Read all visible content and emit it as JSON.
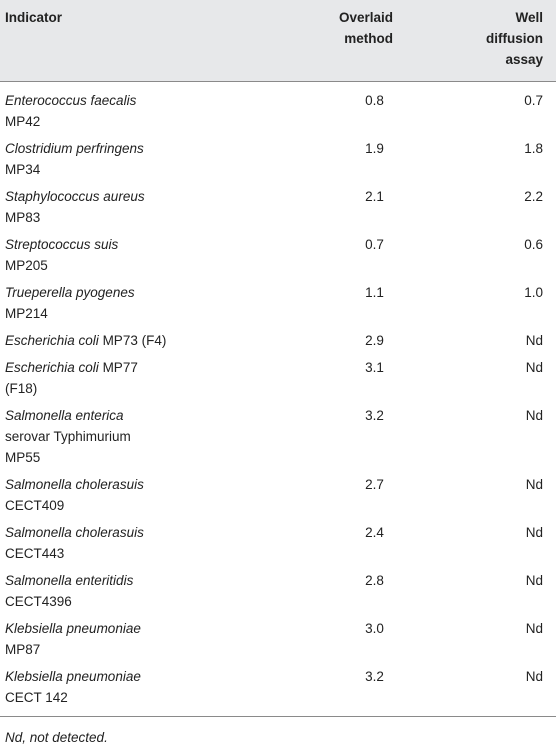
{
  "table": {
    "headers": {
      "indicator": "Indicator",
      "overlaid_line1": "Overlaid",
      "overlaid_line2": "method",
      "well_line1": "Well",
      "well_line2": "diffusion",
      "well_line3": "assay"
    },
    "rows": [
      {
        "species": "Enterococcus faecalis",
        "strain_inline": "",
        "strain_line2": "MP42",
        "overlaid": "0.8",
        "well": "0.7"
      },
      {
        "species": "Clostridium perfringens",
        "strain_inline": "",
        "strain_line2": "MP34",
        "overlaid": "1.9",
        "well": "1.8"
      },
      {
        "species": "Staphylococcus aureus",
        "strain_inline": "",
        "strain_line2": "MP83",
        "overlaid": "2.1",
        "well": "2.2"
      },
      {
        "species": "Streptococcus suis",
        "strain_inline": "",
        "strain_line2": "MP205",
        "overlaid": "0.7",
        "well": "0.6"
      },
      {
        "species": "Trueperella pyogenes",
        "strain_inline": "",
        "strain_line2": "MP214",
        "overlaid": "1.1",
        "well": "1.0"
      },
      {
        "species": "Escherichia coli",
        "strain_inline": "MP73 (F4)",
        "strain_line2": "",
        "overlaid": "2.9",
        "well": "Nd"
      },
      {
        "species": "Escherichia coli",
        "strain_inline": "MP77",
        "strain_line2": "(F18)",
        "overlaid": "3.1",
        "well": "Nd"
      },
      {
        "species": "Salmonella enterica",
        "strain_inline": "",
        "strain_line2": "serovar Typhimurium",
        "strain_line3": "MP55",
        "overlaid": "3.2",
        "well": "Nd"
      },
      {
        "species": "Salmonella cholerasuis",
        "strain_inline": "",
        "strain_line2": "CECT409",
        "overlaid": "2.7",
        "well": "Nd"
      },
      {
        "species": "Salmonella cholerasuis",
        "strain_inline": "",
        "strain_line2": "CECT443",
        "overlaid": "2.4",
        "well": "Nd"
      },
      {
        "species": "Salmonella enteritidis",
        "strain_inline": "",
        "strain_line2": "CECT4396",
        "overlaid": "2.8",
        "well": "Nd"
      },
      {
        "species": "Klebsiella pneumoniae",
        "strain_inline": "",
        "strain_line2": "MP87",
        "overlaid": "3.0",
        "well": "Nd"
      },
      {
        "species": "Klebsiella pneumoniae",
        "strain_inline": "",
        "strain_line2": "CECT 142",
        "overlaid": "3.2",
        "well": "Nd"
      }
    ],
    "footnote": "Nd, not detected."
  }
}
